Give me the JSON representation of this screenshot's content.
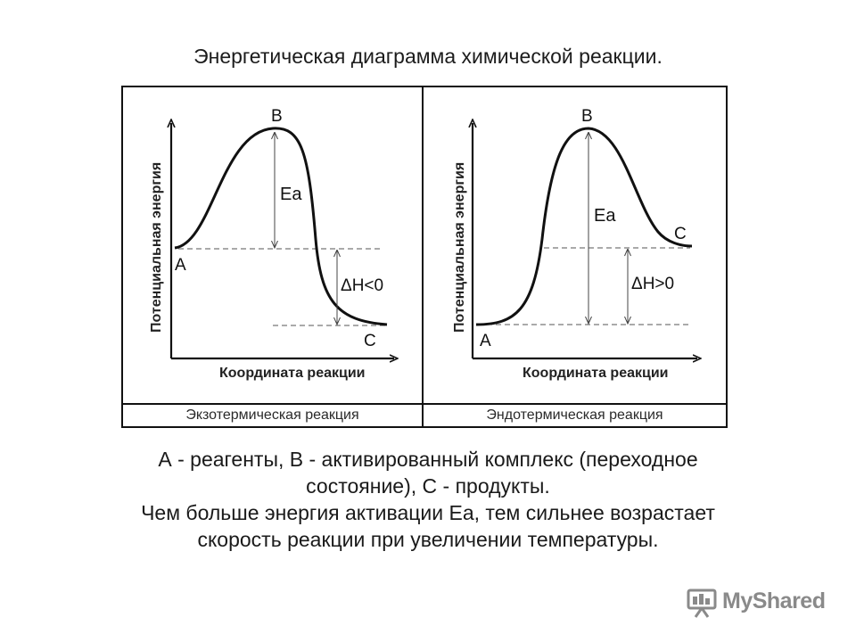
{
  "title": "Энергетическая диаграмма химической реакции.",
  "panels": [
    {
      "caption": "Экзотермическая реакция",
      "y_label": "Потенциальная энергия",
      "x_label": "Координата реакции",
      "point_a": "A",
      "point_b": "B",
      "point_c": "C",
      "ea_label": "Ea",
      "dh_label": "ΔH<0"
    },
    {
      "caption": "Эндотермическая реакция",
      "y_label": "Потенциальная энергия",
      "x_label": "Координата реакции",
      "point_a": "A",
      "point_b": "B",
      "point_c": "C",
      "ea_label": "Ea",
      "dh_label": "ΔH>0"
    }
  ],
  "legend": {
    "line1": "А - реагенты, В - активированный комплекс (переходное",
    "line2": "состояние), С - продукты.",
    "line3": "Чем больше энергия активации Еа, тем сильнее возрастает",
    "line4": "скорость реакции при увеличении температуры."
  },
  "watermark": {
    "text": "MyShared",
    "icon": "presentation-board-icon"
  }
}
